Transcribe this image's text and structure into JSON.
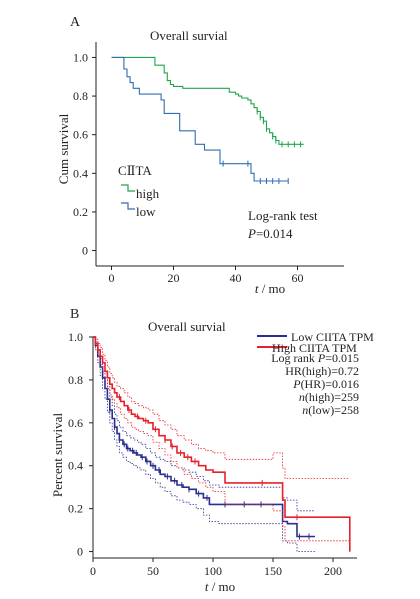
{
  "colors": {
    "axis": "#231f20",
    "green": "#1fa64a",
    "steelblue": "#2e6db4",
    "navy": "#2b2e8f",
    "red": "#e8202a"
  },
  "chart_data": [
    {
      "type": "line",
      "panel_label": "A",
      "title": "Overall survial",
      "xlabel_italic": "t",
      "xlabel_rest": " / mo",
      "ylabel": "Cum survival",
      "xlim": [
        -5,
        75
      ],
      "ylim": [
        -0.08,
        1.08
      ],
      "xticks": [
        0,
        20,
        40,
        60
      ],
      "yticks": [
        0,
        0.2,
        0.4,
        0.6,
        0.8,
        1.0
      ],
      "ytick_labels": [
        "0",
        "0.2",
        "0.4",
        "0.6",
        "0.8",
        "1.0"
      ],
      "legend": {
        "title": "CⅡTA",
        "entries": [
          "high",
          "low"
        ]
      },
      "annotation_line1": "Log-rank test",
      "annotation_p_italic": "P",
      "annotation_p_rest": "=0.014",
      "series": [
        {
          "name": "high",
          "color": "#1fa64a",
          "step": true,
          "x": [
            0,
            12,
            14,
            17,
            18,
            19,
            20,
            23,
            37,
            38,
            40,
            41,
            42,
            44,
            45,
            46,
            47,
            48,
            49,
            50,
            51,
            52,
            53,
            54,
            62
          ],
          "y": [
            1.0,
            1.0,
            0.96,
            0.92,
            0.88,
            0.86,
            0.85,
            0.84,
            0.84,
            0.82,
            0.81,
            0.8,
            0.79,
            0.78,
            0.76,
            0.74,
            0.72,
            0.69,
            0.67,
            0.63,
            0.61,
            0.59,
            0.57,
            0.55,
            0.55
          ],
          "censor_x": [
            47,
            48,
            49,
            50,
            52,
            53,
            55,
            57,
            59,
            61
          ]
        },
        {
          "name": "low",
          "color": "#2e6db4",
          "step": true,
          "x": [
            0,
            3,
            4,
            5,
            6,
            7,
            9,
            14,
            16,
            17,
            21,
            22,
            26,
            27,
            30,
            35,
            44,
            45,
            46,
            57
          ],
          "y": [
            1.0,
            1.0,
            0.94,
            0.9,
            0.87,
            0.84,
            0.81,
            0.81,
            0.78,
            0.71,
            0.71,
            0.62,
            0.62,
            0.55,
            0.52,
            0.45,
            0.45,
            0.4,
            0.36,
            0.36
          ],
          "censor_x": [
            36,
            44,
            48,
            50,
            52,
            54,
            57
          ]
        }
      ]
    },
    {
      "type": "line",
      "panel_label": "B",
      "title": "Overall survial",
      "xlabel_italic": "t",
      "xlabel_rest": " / mo",
      "ylabel": "Percent survival",
      "xlim": [
        0,
        220
      ],
      "ylim": [
        -0.03,
        1.0
      ],
      "xticks": [
        0,
        50,
        100,
        150,
        200
      ],
      "yticks": [
        0,
        0.2,
        0.4,
        0.6,
        0.8,
        1.0
      ],
      "ytick_labels": [
        "0",
        "0.2",
        "0.4",
        "0.6",
        "0.8",
        "1.0"
      ],
      "legend_entries": [
        "Low CIITA TPM",
        "High CIITA TPM"
      ],
      "stats": [
        {
          "pre": "Log rank ",
          "it": "P",
          "post": "=0.015"
        },
        {
          "pre": "HR(high)=0.72",
          "it": "",
          "post": ""
        },
        {
          "pre": "",
          "it": "P",
          "post": "(HR)=0.016"
        },
        {
          "pre": "",
          "it": "n",
          "post": "(high)=259"
        },
        {
          "pre": "",
          "it": "n",
          "post": "(low)=258"
        }
      ],
      "series": [
        {
          "name": "Low CIITA TPM",
          "color": "#2b2e8f",
          "step": true,
          "x": [
            0,
            2,
            4,
            6,
            8,
            10,
            12,
            14,
            16,
            18,
            20,
            22,
            25,
            28,
            31,
            34,
            37,
            40,
            44,
            48,
            52,
            56,
            60,
            65,
            70,
            75,
            80,
            86,
            92,
            97,
            100,
            105,
            158,
            162,
            170,
            185
          ],
          "y": [
            1.0,
            0.96,
            0.91,
            0.86,
            0.81,
            0.76,
            0.71,
            0.66,
            0.62,
            0.58,
            0.55,
            0.52,
            0.5,
            0.48,
            0.47,
            0.46,
            0.45,
            0.44,
            0.42,
            0.4,
            0.38,
            0.36,
            0.35,
            0.33,
            0.31,
            0.3,
            0.29,
            0.27,
            0.25,
            0.22,
            0.22,
            0.22,
            0.14,
            0.13,
            0.07,
            0.07
          ],
          "upper": [
            1.0,
            0.98,
            0.94,
            0.9,
            0.86,
            0.81,
            0.77,
            0.72,
            0.68,
            0.64,
            0.61,
            0.58,
            0.56,
            0.54,
            0.53,
            0.52,
            0.51,
            0.5,
            0.48,
            0.46,
            0.44,
            0.43,
            0.42,
            0.4,
            0.39,
            0.38,
            0.37,
            0.35,
            0.33,
            0.31,
            0.31,
            0.3,
            0.25,
            0.24,
            0.19,
            0.19
          ],
          "lower": [
            1.0,
            0.94,
            0.88,
            0.82,
            0.76,
            0.71,
            0.65,
            0.6,
            0.56,
            0.52,
            0.49,
            0.46,
            0.44,
            0.42,
            0.41,
            0.4,
            0.39,
            0.38,
            0.36,
            0.34,
            0.32,
            0.3,
            0.28,
            0.26,
            0.24,
            0.23,
            0.22,
            0.2,
            0.17,
            0.14,
            0.14,
            0.13,
            0.05,
            0.04,
            0.0,
            0.0
          ],
          "censor_x": [
            14,
            18,
            22,
            26,
            29,
            33,
            36,
            41,
            45,
            50,
            55,
            62,
            68,
            74,
            80,
            88,
            95,
            110,
            126,
            140,
            172,
            180
          ]
        },
        {
          "name": "High CIITA TPM",
          "color": "#e8202a",
          "step": true,
          "x": [
            0,
            2,
            4,
            6,
            8,
            10,
            12,
            14,
            16,
            18,
            20,
            23,
            26,
            29,
            32,
            35,
            38,
            42,
            46,
            50,
            55,
            60,
            65,
            70,
            76,
            82,
            88,
            94,
            100,
            110,
            150,
            158,
            160,
            175,
            213,
            214
          ],
          "y": [
            1.0,
            0.97,
            0.94,
            0.91,
            0.88,
            0.84,
            0.81,
            0.78,
            0.76,
            0.74,
            0.72,
            0.7,
            0.68,
            0.66,
            0.64,
            0.63,
            0.62,
            0.61,
            0.6,
            0.57,
            0.54,
            0.52,
            0.49,
            0.46,
            0.44,
            0.42,
            0.4,
            0.38,
            0.37,
            0.32,
            0.32,
            0.24,
            0.16,
            0.16,
            0.16,
            0.0
          ],
          "upper": [
            1.0,
            0.99,
            0.97,
            0.95,
            0.92,
            0.89,
            0.86,
            0.83,
            0.81,
            0.79,
            0.77,
            0.76,
            0.74,
            0.72,
            0.7,
            0.69,
            0.68,
            0.67,
            0.66,
            0.64,
            0.61,
            0.59,
            0.57,
            0.54,
            0.52,
            0.5,
            0.48,
            0.47,
            0.46,
            0.43,
            0.46,
            0.39,
            0.34,
            0.34,
            0.34,
            0.34
          ],
          "lower": [
            1.0,
            0.95,
            0.91,
            0.87,
            0.84,
            0.8,
            0.76,
            0.73,
            0.71,
            0.69,
            0.67,
            0.64,
            0.62,
            0.6,
            0.58,
            0.57,
            0.56,
            0.55,
            0.54,
            0.51,
            0.48,
            0.45,
            0.42,
            0.39,
            0.36,
            0.34,
            0.32,
            0.3,
            0.28,
            0.22,
            0.19,
            0.12,
            0.05,
            0.05,
            0.05,
            0.05
          ],
          "censor_x": [
            22,
            30,
            37,
            44,
            52,
            60,
            66,
            73,
            79,
            85,
            141,
            170
          ]
        }
      ]
    }
  ]
}
